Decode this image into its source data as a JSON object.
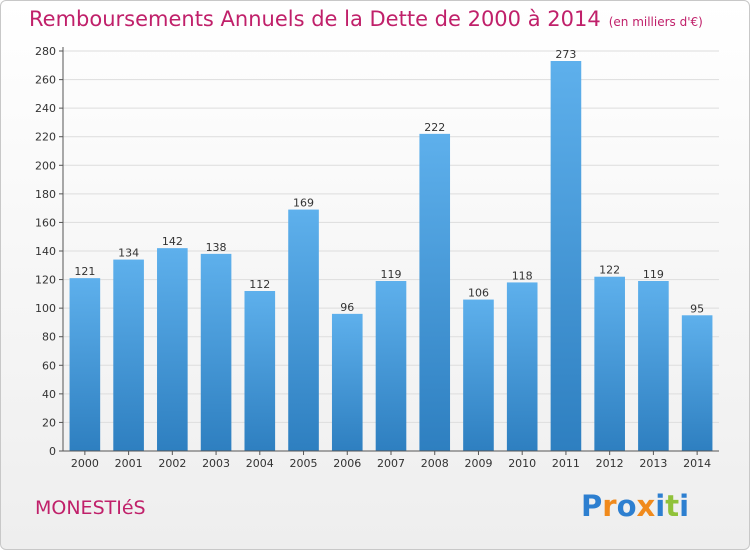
{
  "chart_data": {
    "type": "bar",
    "title": "Remboursements Annuels de la Dette de 2000 à 2014",
    "unit_label": "(en milliers d'€)",
    "categories": [
      "2000",
      "2001",
      "2002",
      "2003",
      "2004",
      "2005",
      "2006",
      "2007",
      "2008",
      "2009",
      "2010",
      "2011",
      "2012",
      "2013",
      "2014"
    ],
    "values": [
      121,
      134,
      142,
      138,
      112,
      169,
      96,
      119,
      222,
      106,
      118,
      273,
      122,
      119,
      95
    ],
    "ylim": [
      0,
      280
    ],
    "yticks": [
      0,
      20,
      40,
      60,
      80,
      100,
      120,
      140,
      160,
      180,
      200,
      220,
      240,
      260,
      280
    ],
    "grid": true,
    "bar_color_top": "#5eb0ec",
    "bar_color_bottom": "#2e7fc0",
    "grid_color": "#dddddd",
    "title_color": "#c0206a"
  },
  "place_name": "MONESTIéS",
  "logo": {
    "text": "Proxiti",
    "letters": [
      {
        "ch": "P",
        "color": "#2d7fd0"
      },
      {
        "ch": "r",
        "color": "#f08a1c"
      },
      {
        "ch": "o",
        "color": "#2d7fd0"
      },
      {
        "ch": "x",
        "color": "#f08a1c"
      },
      {
        "ch": "i",
        "color": "#2d7fd0"
      },
      {
        "ch": "t",
        "color": "#90c23a"
      },
      {
        "ch": "i",
        "color": "#2d7fd0"
      }
    ]
  }
}
